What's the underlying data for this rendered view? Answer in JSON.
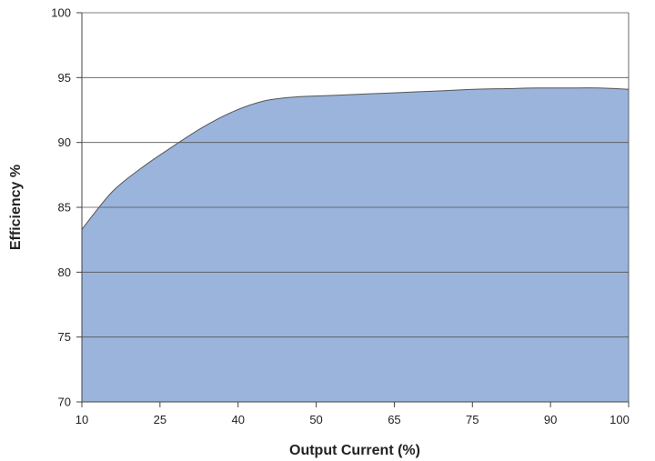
{
  "chart_data": {
    "type": "area",
    "title": "",
    "xlabel": "Output Current (%)",
    "ylabel": "Efficiency %",
    "x_tick_labels": [
      "10",
      "25",
      "40",
      "50",
      "65",
      "75",
      "90",
      "100"
    ],
    "y_ticks": [
      70,
      75,
      80,
      85,
      90,
      95,
      100
    ],
    "ylim": [
      70,
      100
    ],
    "grid": true,
    "legend": "none",
    "series": [
      {
        "x": [
          10,
          15,
          20,
          25,
          30,
          35,
          40,
          45,
          50,
          55,
          60,
          65,
          70,
          75,
          80,
          85,
          90,
          95,
          100
        ],
        "values": [
          83.3,
          86.2,
          88.1,
          89.7,
          91.2,
          92.4,
          93.2,
          93.5,
          93.6,
          93.7,
          93.8,
          93.9,
          94.0,
          94.1,
          94.15,
          94.2,
          94.2,
          94.2,
          94.1
        ]
      }
    ],
    "colors": {
      "fill": "#9ab4dc",
      "stroke": "#555555",
      "grid": "#555555",
      "axis": "#444444"
    }
  }
}
